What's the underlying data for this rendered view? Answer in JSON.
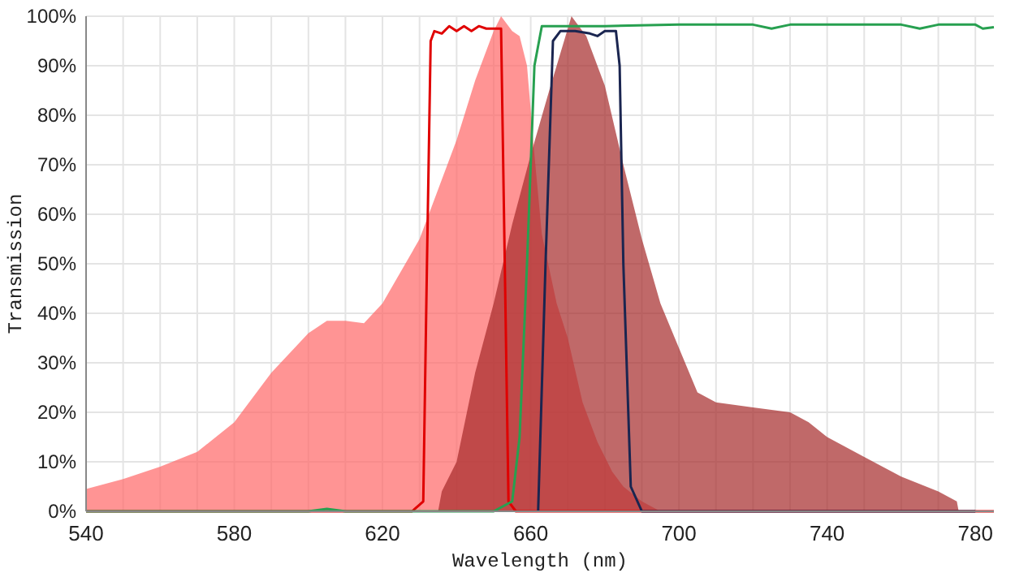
{
  "chart_data": {
    "type": "area",
    "xlabel": "Wavelength (nm)",
    "ylabel": "Transmission",
    "xlim": [
      540,
      785
    ],
    "xticks": [
      540,
      {
        "value": 550,
        "label": null
      },
      {
        "value": 560,
        "label": null
      },
      {
        "value": 570,
        "label": null
      },
      580,
      {
        "value": 590,
        "label": null
      },
      {
        "value": 600,
        "label": null
      },
      {
        "value": 610,
        "label": null
      },
      620,
      {
        "value": 630,
        "label": null
      },
      {
        "value": 640,
        "label": null
      },
      {
        "value": 650,
        "label": null
      },
      660,
      {
        "value": 670,
        "label": null
      },
      {
        "value": 680,
        "label": null
      },
      {
        "value": 690,
        "label": null
      },
      700,
      {
        "value": 710,
        "label": null
      },
      {
        "value": 720,
        "label": null
      },
      {
        "value": 730,
        "label": null
      },
      740,
      {
        "value": 750,
        "label": null
      },
      {
        "value": 760,
        "label": null
      },
      {
        "value": 770,
        "label": null
      },
      780
    ],
    "ylim": [
      0,
      100
    ],
    "yticks": [
      {
        "value": 0,
        "label": "0%"
      },
      {
        "value": 10,
        "label": "10%"
      },
      {
        "value": 20,
        "label": "20%"
      },
      {
        "value": 30,
        "label": "30%"
      },
      {
        "value": 40,
        "label": "40%"
      },
      {
        "value": 50,
        "label": "50%"
      },
      {
        "value": 60,
        "label": "60%"
      },
      {
        "value": 70,
        "label": "70%"
      },
      {
        "value": 80,
        "label": "80%"
      },
      {
        "value": 90,
        "label": "90%"
      },
      {
        "value": 100,
        "label": "100%"
      }
    ],
    "grid": true,
    "series": [
      {
        "color": "#ff6666",
        "x": [
          540,
          550,
          560,
          570,
          580,
          590,
          600,
          605,
          610,
          615,
          620,
          630,
          640,
          645,
          650,
          652,
          655,
          657,
          659,
          661,
          663,
          667,
          670,
          674,
          678,
          682,
          685,
          690,
          695
        ],
        "values": [
          4.5,
          6.5,
          9,
          12,
          18,
          28,
          36,
          38.5,
          38.5,
          38,
          42,
          55,
          75,
          87,
          97,
          100,
          97,
          96,
          90,
          72,
          56,
          42,
          35,
          22,
          14,
          8,
          5,
          2,
          0
        ]
      },
      {
        "color": "#a52a2a",
        "x": [
          635,
          636,
          640,
          645,
          650,
          655,
          660,
          665,
          671,
          675,
          680,
          685,
          690,
          695,
          700,
          705,
          710,
          720,
          730,
          735,
          740,
          750,
          760,
          770,
          775,
          775.5
        ],
        "values": [
          0,
          4,
          10,
          28,
          42,
          58,
          72,
          85,
          100,
          96,
          86,
          70,
          55,
          42,
          33,
          24,
          22,
          21,
          20,
          18,
          15,
          11,
          7,
          4,
          2,
          0
        ]
      },
      {
        "type": "line",
        "color": "#e00000",
        "x": [
          540,
          628,
          631,
          632,
          633,
          634,
          636,
          638,
          640,
          642,
          644,
          646,
          648,
          650,
          652,
          653,
          654,
          656,
          785
        ],
        "values": [
          0,
          0,
          2,
          50,
          95,
          97,
          96.5,
          98,
          97,
          98,
          97,
          98,
          97.5,
          97.5,
          97.5,
          50,
          2,
          0,
          0
        ]
      },
      {
        "type": "line",
        "color": "#27a050",
        "x": [
          540,
          600,
          605,
          610,
          650,
          655,
          657,
          659,
          661,
          663,
          680,
          700,
          720,
          725,
          730,
          760,
          765,
          770,
          780,
          782,
          785
        ],
        "values": [
          0,
          0,
          0.5,
          0,
          0,
          2,
          15,
          50,
          90,
          98,
          98,
          98.3,
          98.3,
          97.5,
          98.3,
          98.3,
          97.5,
          98.3,
          98.3,
          97.5,
          97.8
        ]
      },
      {
        "type": "line",
        "color": "#1a2550",
        "x": [
          662,
          664,
          666,
          668,
          672,
          676,
          678,
          680,
          683,
          684,
          685,
          687,
          690,
          780
        ],
        "values": [
          0,
          50,
          95,
          97,
          97,
          96.5,
          96,
          97,
          97,
          90,
          50,
          5,
          0,
          0
        ]
      }
    ]
  }
}
